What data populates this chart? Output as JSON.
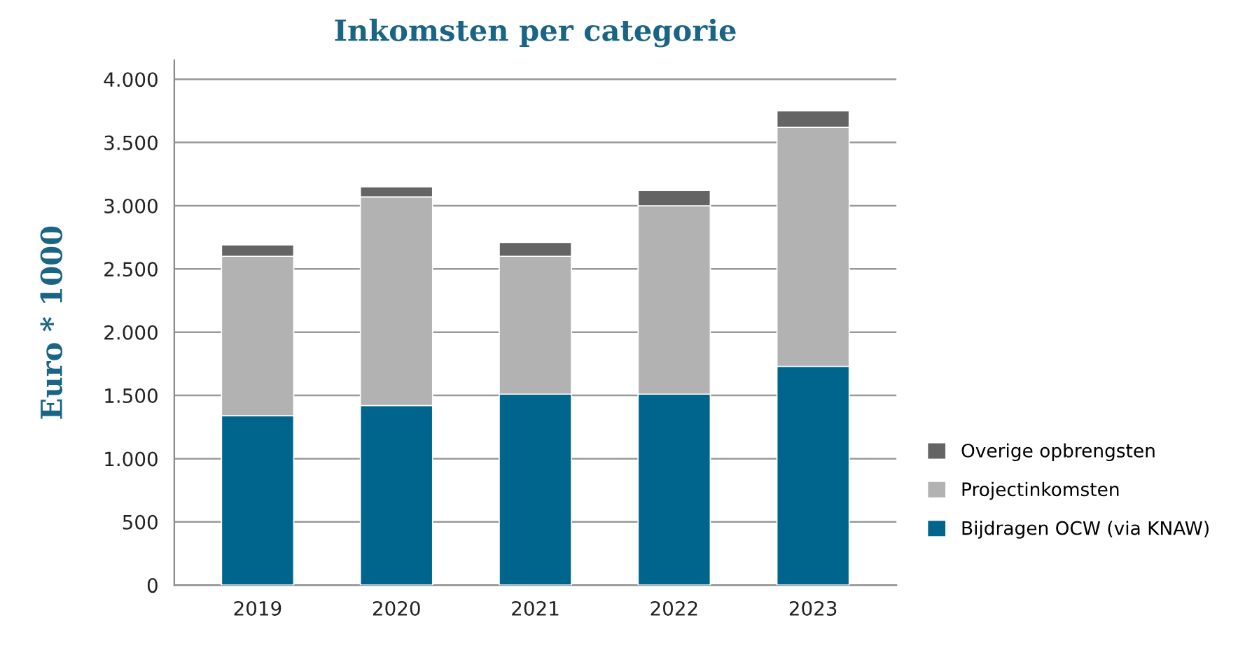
{
  "chart_data": {
    "type": "bar",
    "title": "Inkomsten per categorie",
    "ylabel": "Euro * 1000",
    "categories": [
      "2019",
      "2020",
      "2021",
      "2022",
      "2023"
    ],
    "stacked": true,
    "series": [
      {
        "name": "Bijdragen OCW (via KNAW)",
        "color": "#00658c",
        "values": [
          1340,
          1420,
          1510,
          1510,
          1730
        ]
      },
      {
        "name": "Projectinkomsten",
        "color": "#b2b2b2",
        "values": [
          1260,
          1650,
          1090,
          1490,
          1890
        ]
      },
      {
        "name": "Overige opbrengsten",
        "color": "#646464",
        "values": [
          90,
          80,
          110,
          120,
          130
        ]
      }
    ],
    "ylim": [
      0,
      4150
    ],
    "yticks": [
      0,
      500,
      {
        "value": 1000,
        "label": "1.000"
      },
      {
        "value": 1500,
        "label": "1.500"
      },
      {
        "value": 2000,
        "label": "2.000"
      },
      {
        "value": 2500,
        "label": "2.500"
      },
      {
        "value": 3000,
        "label": "3.000"
      },
      {
        "value": 3500,
        "label": "3.500"
      },
      {
        "value": 4000,
        "label": "4.000"
      }
    ],
    "grid": "y",
    "legend": "right"
  }
}
